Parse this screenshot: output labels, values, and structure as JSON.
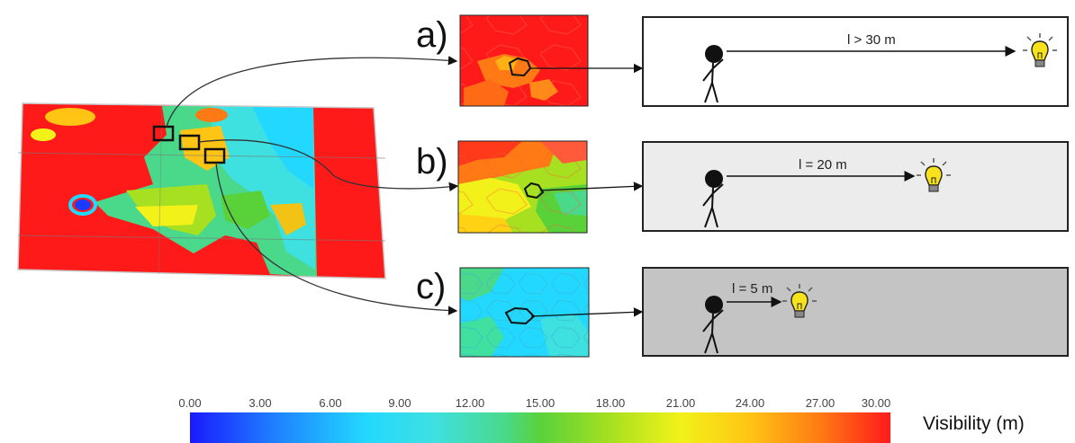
{
  "panels": [
    {
      "id": "a",
      "label": "a)",
      "distance": "l > 30 m",
      "scene_bg": "#ffffff"
    },
    {
      "id": "b",
      "label": "b)",
      "distance": "l = 20 m",
      "scene_bg": "#ececec"
    },
    {
      "id": "c",
      "label": "c)",
      "distance": "l = 5 m",
      "scene_bg": "#c4c4c4"
    }
  ],
  "legend": {
    "title": "Visibility (m)",
    "ticks": [
      "0.00",
      "3.00",
      "6.00",
      "9.00",
      "12.00",
      "15.00",
      "18.00",
      "21.00",
      "24.00",
      "27.00",
      "30.00"
    ],
    "min": 0,
    "max": 30,
    "colors": [
      "#1a1aff",
      "#22d8ff",
      "#59d23a",
      "#f2f21a",
      "#ff7a14",
      "#ff1a1a"
    ]
  }
}
